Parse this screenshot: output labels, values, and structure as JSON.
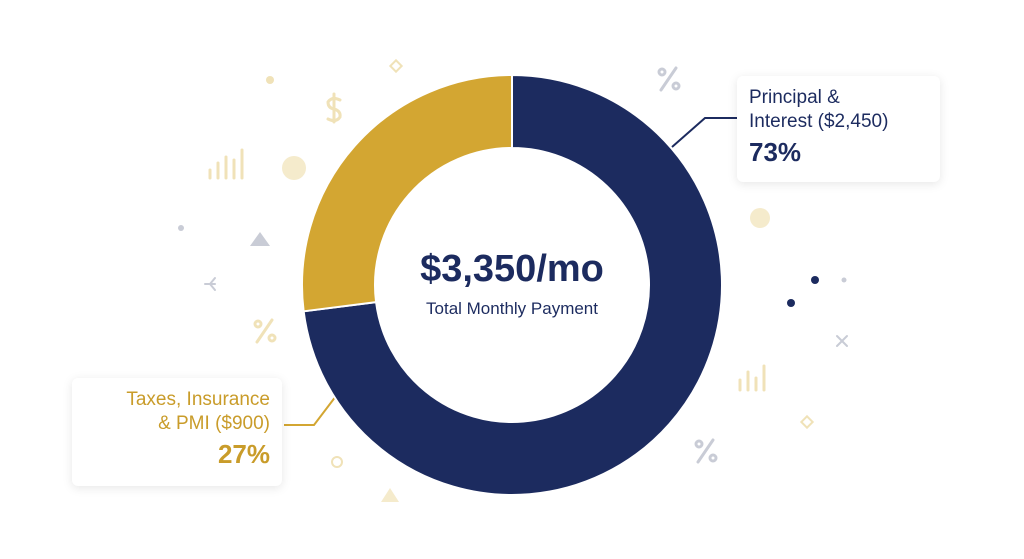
{
  "chart_data": {
    "type": "donut",
    "center_value": "$3,350/mo",
    "center_label": "Total Monthly Payment",
    "categories": [
      "Principal &\nInterest ($2,450)",
      "Taxes, Insurance\n& PMI ($900)"
    ],
    "values": [
      73,
      27
    ],
    "value_labels": [
      "73%",
      "27%"
    ],
    "colors": [
      "#1c2b5f",
      "#d3a632"
    ]
  }
}
